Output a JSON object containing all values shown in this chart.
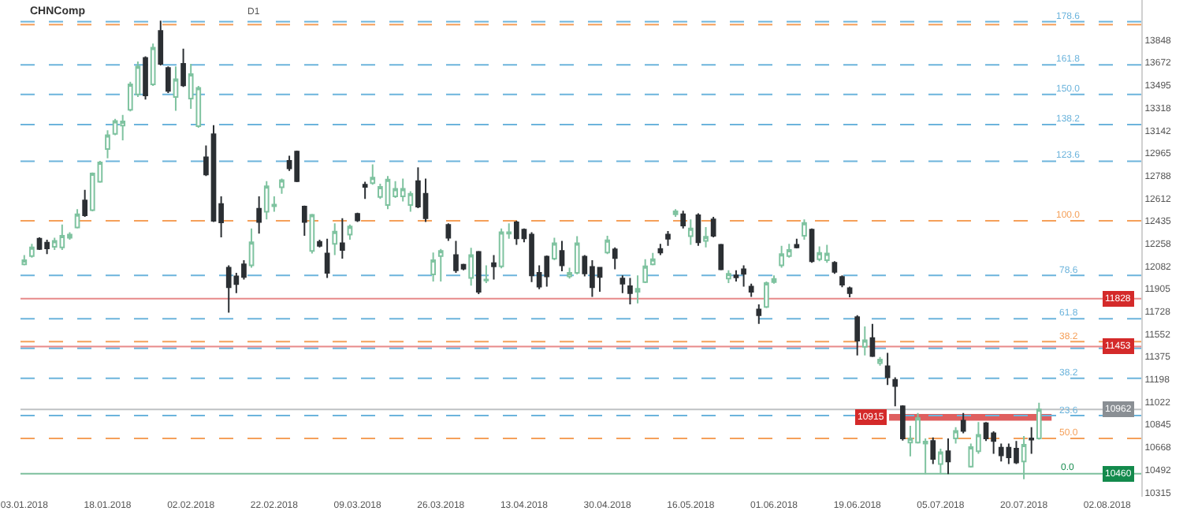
{
  "chart_data": {
    "type": "candlestick",
    "title": "CHNComp",
    "annotations": [
      "D1",
      {
        "text": "178.6",
        "y": 13991
      },
      {
        "text": "161.8",
        "y": 13653
      },
      {
        "text": "150.0",
        "y": 13422
      },
      {
        "text": "138.2",
        "y": 13187
      },
      {
        "text": "123.6",
        "y": 12900
      },
      {
        "text": "100.0",
        "y": 12435
      },
      {
        "text": "78.6",
        "y": 12009
      },
      {
        "text": "61.8",
        "y": 11671
      },
      {
        "text": "38.2",
        "y": 11491
      },
      {
        "text": "38.2",
        "y": 11205
      },
      {
        "text": "23.6",
        "y": 10914
      },
      {
        "text": "50.0",
        "y": 10735
      },
      {
        "text": "0.0",
        "y": 10460
      }
    ],
    "categories": [
      "03.01.2018",
      null,
      null,
      null,
      null,
      null,
      null,
      null,
      null,
      null,
      null,
      "18.01.2018",
      null,
      null,
      null,
      null,
      null,
      null,
      null,
      null,
      null,
      null,
      "02.02.2018",
      null,
      null,
      null,
      null,
      null,
      null,
      null,
      null,
      null,
      null,
      "22.02.2018",
      null,
      null,
      null,
      null,
      null,
      null,
      null,
      null,
      null,
      null,
      "09.03.2018",
      null,
      null,
      null,
      null,
      null,
      null,
      null,
      null,
      null,
      null,
      "26.03.2018",
      null,
      null,
      null,
      null,
      null,
      null,
      null,
      null,
      null,
      null,
      "13.04.2018",
      null,
      null,
      null,
      null,
      null,
      null,
      null,
      null,
      null,
      null,
      "30.04.2018",
      null,
      null,
      null,
      null,
      null,
      null,
      null,
      null,
      null,
      null,
      "16.05.2018",
      null,
      null,
      null,
      null,
      null,
      null,
      null,
      null,
      null,
      null,
      "01.06.2018",
      null,
      null,
      null,
      null,
      null,
      null,
      null,
      null,
      null,
      null,
      "19.06.2018",
      null,
      null,
      null,
      null,
      null,
      null,
      null,
      null,
      null,
      null,
      "05.07.2018",
      null,
      null,
      null,
      null,
      null,
      null,
      null,
      null,
      null,
      null,
      "20.07.2018",
      null,
      null,
      null,
      null,
      null,
      null,
      null,
      null,
      null,
      null,
      "02.08.2018",
      null,
      null,
      null,
      null
    ],
    "ohlc": [
      [
        12096,
        12168,
        12088,
        12128
      ],
      [
        12160,
        12256,
        12148,
        12228
      ],
      [
        12295,
        12307,
        12208,
        12216
      ],
      [
        12264,
        12287,
        12176,
        12220
      ],
      [
        12232,
        12303,
        12208,
        12279
      ],
      [
        12228,
        12407,
        12208,
        12319
      ],
      [
        12303,
        12347,
        12287,
        12327
      ],
      [
        12383,
        12526,
        12375,
        12486
      ],
      [
        12594,
        12677,
        12467,
        12479
      ],
      [
        12518,
        12813,
        12510,
        12805
      ],
      [
        12741,
        12904,
        12733,
        12892
      ],
      [
        12996,
        13143,
        12924,
        13103
      ],
      [
        13115,
        13231,
        13103,
        13215
      ],
      [
        13179,
        13263,
        13064,
        13211
      ],
      [
        13302,
        13521,
        13290,
        13501
      ],
      [
        13422,
        13680,
        13402,
        13641
      ],
      [
        13708,
        13720,
        13382,
        13414
      ],
      [
        13501,
        13820,
        13489,
        13788
      ],
      [
        13919,
        13999,
        13649,
        13661
      ],
      [
        13629,
        13641,
        13434,
        13450
      ],
      [
        13402,
        13641,
        13294,
        13541
      ],
      [
        13661,
        13780,
        13481,
        13493
      ],
      [
        13390,
        13661,
        13310,
        13581
      ],
      [
        13175,
        13489,
        13163,
        13473
      ],
      [
        12932,
        13024,
        12785,
        12797
      ],
      [
        13111,
        13183,
        12427,
        12435
      ],
      [
        12566,
        12626,
        12307,
        12423
      ],
      [
        12069,
        12088,
        11718,
        11917
      ],
      [
        12001,
        12029,
        11870,
        11941
      ],
      [
        12096,
        12128,
        11977,
        11997
      ],
      [
        12088,
        12375,
        12069,
        12268
      ],
      [
        12530,
        12626,
        12335,
        12427
      ],
      [
        12506,
        12745,
        12447,
        12705
      ],
      [
        12550,
        12626,
        12506,
        12562
      ],
      [
        12697,
        12765,
        12646,
        12753
      ],
      [
        12904,
        12944,
        12825,
        12845
      ],
      [
        12976,
        12984,
        12737,
        12745
      ],
      [
        12546,
        12554,
        12319,
        12427
      ],
      [
        12200,
        12490,
        12180,
        12482
      ],
      [
        12271,
        12287,
        12228,
        12240
      ],
      [
        12180,
        12295,
        11989,
        12029
      ],
      [
        12256,
        12415,
        12168,
        12351
      ],
      [
        12260,
        12455,
        12140,
        12208
      ],
      [
        12327,
        12407,
        12287,
        12391
      ],
      [
        12490,
        12498,
        12427,
        12439
      ],
      [
        12717,
        12741,
        12606,
        12701
      ],
      [
        12729,
        12876,
        12717,
        12773
      ],
      [
        12622,
        12725,
        12606,
        12701
      ],
      [
        12558,
        12785,
        12526,
        12757
      ],
      [
        12626,
        12745,
        12614,
        12685
      ],
      [
        12626,
        12765,
        12586,
        12685
      ],
      [
        12558,
        12666,
        12506,
        12646
      ],
      [
        12745,
        12853,
        12534,
        12546
      ],
      [
        12646,
        12765,
        12427,
        12455
      ],
      [
        12017,
        12188,
        11961,
        12128
      ],
      [
        12160,
        12216,
        11961,
        12200
      ],
      [
        12403,
        12415,
        12279,
        12303
      ],
      [
        12168,
        12279,
        12029,
        12049
      ],
      [
        12092,
        12100,
        12049,
        12061
      ],
      [
        11989,
        12224,
        11929,
        12168
      ],
      [
        12192,
        12200,
        11862,
        11882
      ],
      [
        11969,
        12088,
        11949,
        11977
      ],
      [
        12104,
        12168,
        11977,
        12080
      ],
      [
        12080,
        12375,
        12065,
        12347
      ],
      [
        12335,
        12415,
        12295,
        12347
      ],
      [
        12423,
        12435,
        12248,
        12299
      ],
      [
        12367,
        12375,
        12268,
        12299
      ],
      [
        12327,
        12347,
        11957,
        12009
      ],
      [
        12029,
        12088,
        11901,
        11921
      ],
      [
        12156,
        12164,
        11921,
        12001
      ],
      [
        12140,
        12303,
        12128,
        12260
      ],
      [
        12200,
        12279,
        12041,
        12088
      ],
      [
        12001,
        12069,
        11985,
        12029
      ],
      [
        12029,
        12315,
        12017,
        12260
      ],
      [
        12156,
        12168,
        12001,
        12025
      ],
      [
        12076,
        12128,
        11842,
        11917
      ],
      [
        12069,
        12076,
        11882,
        11997
      ],
      [
        12188,
        12319,
        12176,
        12283
      ],
      [
        12212,
        12228,
        12057,
        12144
      ],
      [
        11985,
        12009,
        11870,
        11945
      ],
      [
        11925,
        11989,
        11782,
        11870
      ],
      [
        11882,
        12009,
        11790,
        11905
      ],
      [
        11957,
        12136,
        11949,
        12080
      ],
      [
        12096,
        12184,
        12088,
        12136
      ],
      [
        12216,
        12256,
        12168,
        12188
      ],
      [
        12327,
        12355,
        12240,
        12295
      ],
      [
        12486,
        12526,
        12467,
        12510
      ],
      [
        12486,
        12514,
        12375,
        12399
      ],
      [
        12315,
        12447,
        12248,
        12375
      ],
      [
        12479,
        12494,
        12240,
        12268
      ],
      [
        12279,
        12387,
        12228,
        12311
      ],
      [
        12447,
        12467,
        12307,
        12319
      ],
      [
        12248,
        12256,
        12049,
        12057
      ],
      [
        11985,
        12049,
        11949,
        12021
      ],
      [
        12009,
        12049,
        11961,
        11993
      ],
      [
        12057,
        12088,
        11921,
        12021
      ],
      [
        11921,
        11945,
        11842,
        11882
      ],
      [
        11742,
        11782,
        11631,
        11698
      ],
      [
        11762,
        11961,
        11754,
        11949
      ],
      [
        11957,
        12009,
        11945,
        11981
      ],
      [
        12088,
        12240,
        12069,
        12176
      ],
      [
        12160,
        12256,
        12148,
        12208
      ],
      [
        12248,
        12295,
        12220,
        12228
      ],
      [
        12319,
        12447,
        12287,
        12419
      ],
      [
        12367,
        12375,
        12108,
        12120
      ],
      [
        12136,
        12236,
        12120,
        12184
      ],
      [
        12128,
        12248,
        12108,
        12180
      ],
      [
        12108,
        12120,
        12021,
        12037
      ],
      [
        11997,
        12009,
        11917,
        11937
      ],
      [
        11909,
        11921,
        11838,
        11870
      ],
      [
        11682,
        11698,
        11384,
        11499
      ],
      [
        11452,
        11611,
        11384,
        11503
      ],
      [
        11519,
        11631,
        11372,
        11380
      ],
      [
        11324,
        11372,
        11304,
        11352
      ],
      [
        11300,
        11404,
        11153,
        11213
      ],
      [
        11193,
        11213,
        10986,
        11145
      ],
      [
        10986,
        10994,
        10719,
        10735
      ],
      [
        10703,
        10835,
        10596,
        10735
      ],
      [
        10703,
        10934,
        10695,
        10894
      ],
      [
        10695,
        10735,
        10457,
        10711
      ],
      [
        10715,
        10743,
        10536,
        10576
      ],
      [
        10536,
        10656,
        10457,
        10628
      ],
      [
        10636,
        10735,
        10457,
        10556
      ],
      [
        10735,
        10823,
        10695,
        10795
      ],
      [
        10875,
        10934,
        10775,
        10795
      ],
      [
        10516,
        10695,
        10508,
        10668
      ],
      [
        10636,
        10863,
        10616,
        10763
      ],
      [
        10855,
        10863,
        10715,
        10735
      ],
      [
        10775,
        10791,
        10616,
        10715
      ],
      [
        10664,
        10695,
        10556,
        10604
      ],
      [
        10664,
        10695,
        10536,
        10588
      ],
      [
        10656,
        10715,
        10536,
        10548
      ],
      [
        10556,
        10755,
        10417,
        10687
      ],
      [
        10735,
        10823,
        10616,
        10727
      ],
      [
        10735,
        11014,
        10727,
        10962
      ],
      null,
      null,
      null,
      null,
      null,
      null,
      null,
      null,
      null,
      null,
      null,
      null,
      null
    ],
    "ylim": [
      10280,
      14160
    ],
    "yticks": [
      10315,
      10492,
      10668,
      10845,
      11022,
      11198,
      11375,
      11552,
      11728,
      11905,
      12082,
      12258,
      12435,
      12612,
      12788,
      12965,
      13142,
      13318,
      13495,
      13672,
      13848
    ],
    "grid": false,
    "legend": false,
    "ref_lines": [
      {
        "axis": "y",
        "value": 13967,
        "label": null,
        "color": "#f5a05a",
        "line_style": "dashed"
      },
      {
        "axis": "y",
        "value": 13991,
        "label": null,
        "color": "#6cb4dc",
        "line_style": "dashed"
      },
      {
        "axis": "y",
        "value": 13653,
        "label": null,
        "color": "#6cb4dc",
        "line_style": "dashed"
      },
      {
        "axis": "y",
        "value": 13422,
        "label": null,
        "color": "#6cb4dc",
        "line_style": "dashed"
      },
      {
        "axis": "y",
        "value": 13187,
        "label": null,
        "color": "#6cb4dc",
        "line_style": "dashed"
      },
      {
        "axis": "y",
        "value": 12900,
        "label": null,
        "color": "#6cb4dc",
        "line_style": "dashed"
      },
      {
        "axis": "y",
        "value": 12435,
        "label": null,
        "color": "#f5a05a",
        "line_style": "dashed"
      },
      {
        "axis": "y",
        "value": 12009,
        "label": null,
        "color": "#6cb4dc",
        "line_style": "dashed"
      },
      {
        "axis": "y",
        "value": 11671,
        "label": null,
        "color": "#6cb4dc",
        "line_style": "dashed"
      },
      {
        "axis": "y",
        "value": 11491,
        "label": null,
        "color": "#f5a05a",
        "line_style": "dashed"
      },
      {
        "axis": "y",
        "value": 11440,
        "label": null,
        "color": "#6cb4dc",
        "line_style": "dashed"
      },
      {
        "axis": "y",
        "value": 11205,
        "label": null,
        "color": "#6cb4dc",
        "line_style": "dashed"
      },
      {
        "axis": "y",
        "value": 10914,
        "label": null,
        "color": "#6cb4dc",
        "line_style": "dashed"
      },
      {
        "axis": "y",
        "value": 10735,
        "label": null,
        "color": "#f5a05a",
        "line_style": "dashed"
      },
      {
        "axis": "y",
        "value": 11828,
        "label": "11828",
        "color": "#d42a2a",
        "line_style": "solid"
      },
      {
        "axis": "y",
        "value": 11453,
        "label": "11453",
        "color": "#d42a2a",
        "line_style": "solid"
      },
      {
        "axis": "y",
        "value": 10962,
        "label": "10962",
        "color": "#8a8f94",
        "line_style": "solid"
      },
      {
        "axis": "y",
        "value": 10460,
        "label": "10460",
        "color": "#138a4c",
        "line_style": "solid"
      }
    ],
    "bands": [
      {
        "axis": "y",
        "from": 10875,
        "to": 10926,
        "label": "10915",
        "color": "#d42a2a"
      }
    ]
  }
}
